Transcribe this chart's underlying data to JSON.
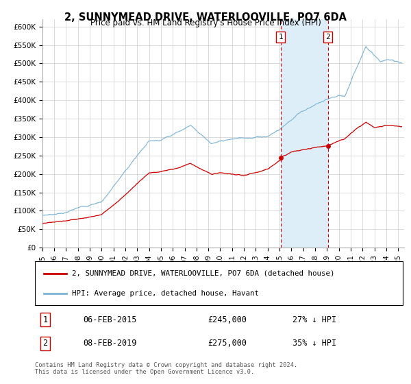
{
  "title": "2, SUNNYMEAD DRIVE, WATERLOOVILLE, PO7 6DA",
  "subtitle": "Price paid vs. HM Land Registry's House Price Index (HPI)",
  "ylabel_ticks": [
    "£0",
    "£50K",
    "£100K",
    "£150K",
    "£200K",
    "£250K",
    "£300K",
    "£350K",
    "£400K",
    "£450K",
    "£500K",
    "£550K",
    "£600K"
  ],
  "ytick_values": [
    0,
    50000,
    100000,
    150000,
    200000,
    250000,
    300000,
    350000,
    400000,
    450000,
    500000,
    550000,
    600000
  ],
  "transaction1": {
    "date_num": 2015.09,
    "price": 245000,
    "label": "1",
    "date_str": "06-FEB-2015",
    "price_str": "£245,000",
    "pct": "27% ↓ HPI"
  },
  "transaction2": {
    "date_num": 2019.09,
    "price": 275000,
    "label": "2",
    "date_str": "08-FEB-2019",
    "price_str": "£275,000",
    "pct": "35% ↓ HPI"
  },
  "hpi_color": "#7ab3d4",
  "hpi_fill_color": "#ddeef8",
  "price_color": "#cc0000",
  "dashed_color": "#cc0000",
  "background_color": "#ffffff",
  "grid_color": "#cccccc",
  "legend_label_price": "2, SUNNYMEAD DRIVE, WATERLOOVILLE, PO7 6DA (detached house)",
  "legend_label_hpi": "HPI: Average price, detached house, Havant",
  "footnote1": "Contains HM Land Registry data © Crown copyright and database right 2024.",
  "footnote2": "This data is licensed under the Open Government Licence v3.0.",
  "xmin": 1995,
  "xmax": 2025.5,
  "ymin": 0,
  "ymax": 620000
}
